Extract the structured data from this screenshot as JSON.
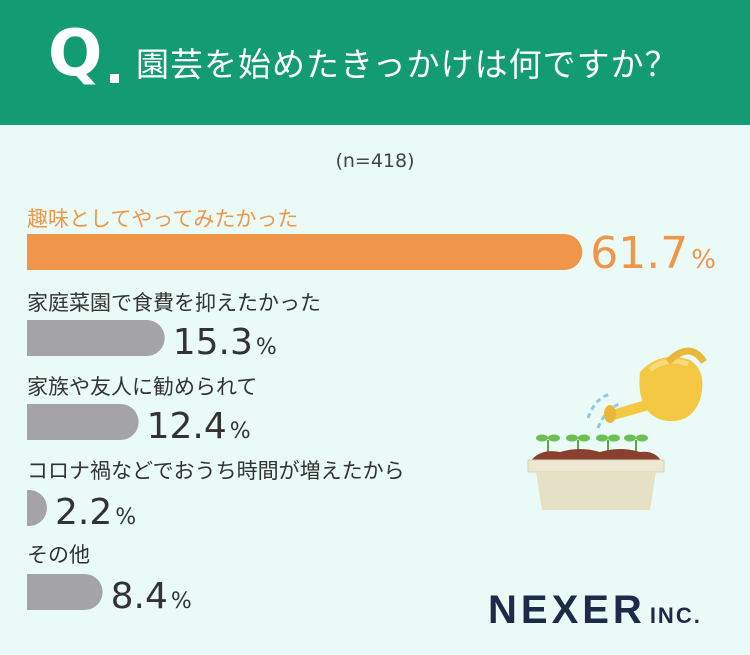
{
  "header": {
    "q": "Q",
    "question": "園芸を始めたきっかけは何ですか？"
  },
  "sample_note": "(n=418)",
  "logo": {
    "main": "NEXER",
    "sub": "INC."
  },
  "colors": {
    "highlight": "#f0964a",
    "bar": "#a3a3a8",
    "header": "#139b74",
    "background": "#eafaf6"
  },
  "illustration": "watering-can-and-planter",
  "chart_data": {
    "type": "bar",
    "orientation": "horizontal",
    "unit": "%",
    "categories": [
      "趣味としてやってみたかった",
      "家庭菜園で食費を抑えたかった",
      "家族や友人に勧められて",
      "コロナ禍などでおうち時間が増えたから",
      "その他"
    ],
    "values": [
      61.7,
      15.3,
      12.4,
      2.2,
      8.4
    ],
    "value_labels": [
      "61.7",
      "15.3",
      "12.4",
      "2.2",
      "8.4"
    ],
    "highlight_index": 0
  }
}
